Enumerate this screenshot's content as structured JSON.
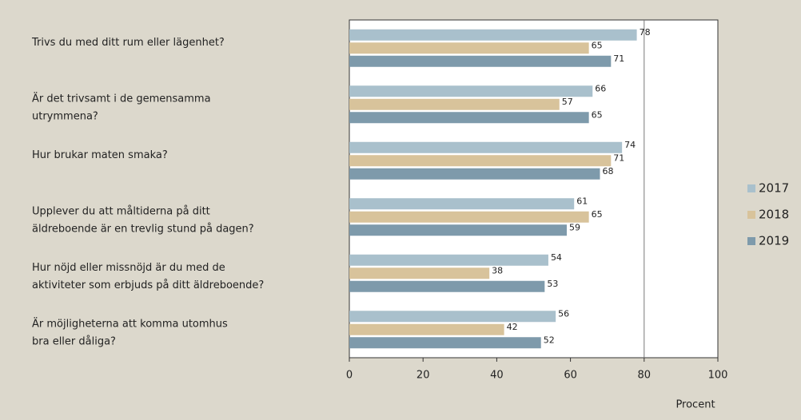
{
  "chart_data": {
    "type": "barh",
    "categories": [
      [
        "Trivs du med ditt rum eller lägenhet?"
      ],
      [
        "Är det trivsamt i de gemensamma",
        "utrymmena?"
      ],
      [
        "Hur brukar maten smaka?"
      ],
      [
        "Upplever du att måltiderna på ditt",
        "äldreboende är en trevlig stund på dagen?"
      ],
      [
        "Hur nöjd eller missnöjd är du med de",
        "aktiviteter som erbjuds på ditt äldreboende?"
      ],
      [
        "Är möjligheterna att komma utomhus",
        "bra eller dåliga?"
      ]
    ],
    "series": [
      {
        "name": "2017",
        "color": "#a9c0cc",
        "values": [
          78,
          66,
          74,
          61,
          54,
          56
        ]
      },
      {
        "name": "2018",
        "color": "#d8c39b",
        "values": [
          65,
          57,
          71,
          65,
          38,
          42
        ]
      },
      {
        "name": "2019",
        "color": "#7e9aab",
        "values": [
          71,
          65,
          68,
          59,
          53,
          52
        ]
      }
    ],
    "xlim": [
      0,
      100
    ],
    "xticks": [
      0,
      20,
      40,
      60,
      80,
      100
    ],
    "xlabel": "Procent",
    "reference_line": 80,
    "legend": "right"
  }
}
